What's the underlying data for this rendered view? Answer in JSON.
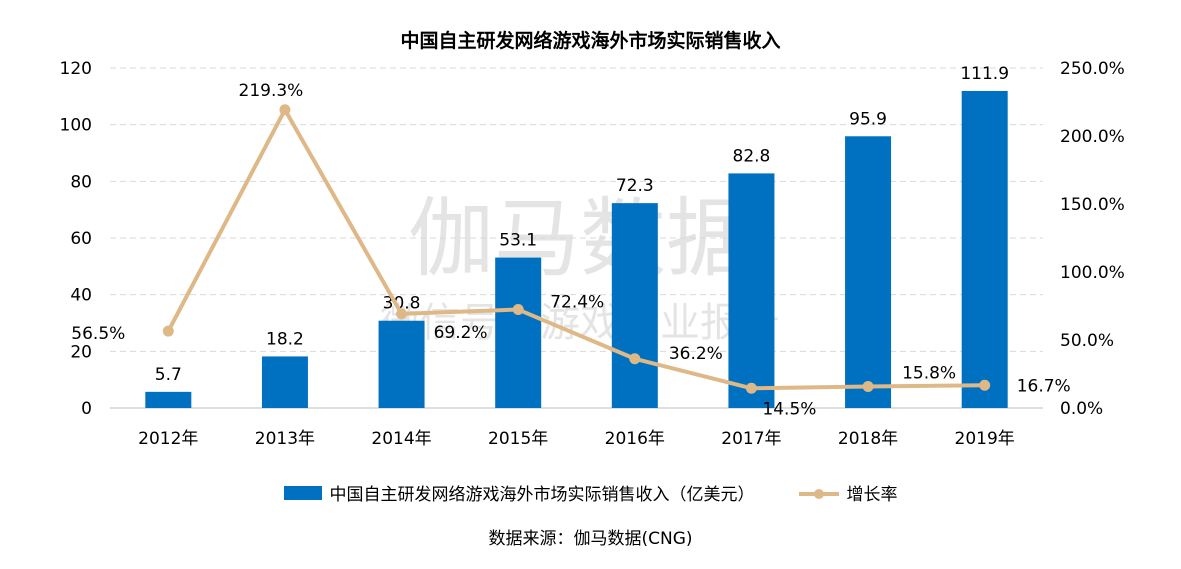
{
  "chart_data": {
    "type": "bar",
    "title": "中国自主研发网络游戏海外市场实际销售收入",
    "categories": [
      "2012年",
      "2013年",
      "2014年",
      "2015年",
      "2016年",
      "2017年",
      "2018年",
      "2019年"
    ],
    "series": [
      {
        "name": "中国自主研发网络游戏海外市场实际销售收入（亿美元）",
        "kind": "bar",
        "axis": "left",
        "values": [
          5.7,
          18.2,
          30.8,
          53.1,
          72.3,
          82.8,
          95.9,
          111.9
        ],
        "labels": [
          "5.7",
          "18.2",
          "30.8",
          "53.1",
          "72.3",
          "82.8",
          "95.9",
          "111.9"
        ]
      },
      {
        "name": "增长率",
        "kind": "line",
        "axis": "right",
        "values": [
          56.5,
          219.3,
          69.2,
          72.4,
          36.2,
          14.5,
          15.8,
          16.7
        ],
        "labels": [
          "56.5%",
          "219.3%",
          "69.2%",
          "72.4%",
          "36.2%",
          "14.5%",
          "15.8%",
          "16.7%"
        ]
      }
    ],
    "y_left": {
      "min": 0,
      "max": 120,
      "ticks": [
        0,
        20,
        40,
        60,
        80,
        100,
        120
      ]
    },
    "y_right": {
      "min": 0,
      "max": 250,
      "ticks": [
        "0.0%",
        "50.0%",
        "100.0%",
        "150.0%",
        "200.0%",
        "250.0%"
      ]
    },
    "grid": true,
    "legend_position": "bottom",
    "colors": {
      "bar": "#0070C0",
      "line": "#DEB887",
      "grid": "#D9D9D9"
    },
    "source": "数据来源：伽马数据(CNG)",
    "watermark": {
      "line1": "伽马数据",
      "line2": "微信号：游戏产业报告"
    }
  }
}
